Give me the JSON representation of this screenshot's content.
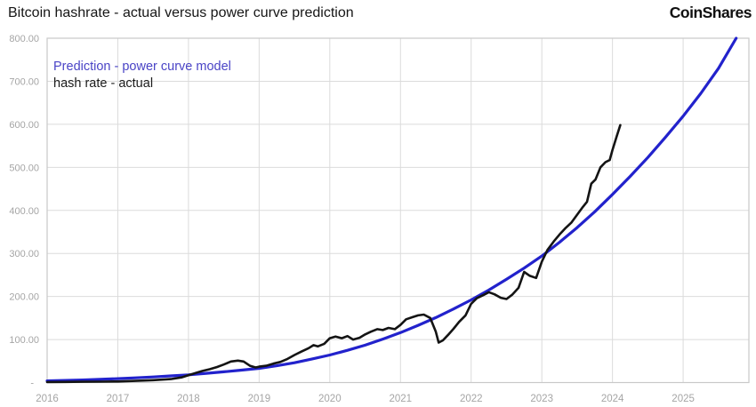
{
  "header": {
    "title": "Bitcoin hashrate - actual versus power curve prediction",
    "brand": "CoinShares"
  },
  "legend": [
    {
      "label": "Prediction - power curve model",
      "color": "#4a44c6"
    },
    {
      "label": "hash rate - actual",
      "color": "#1c1c1c"
    }
  ],
  "chart_data": {
    "type": "line",
    "title": "Bitcoin hashrate - actual versus power curve prediction",
    "xlabel": "",
    "ylabel": "",
    "xlim": [
      2016,
      2025.93
    ],
    "ylim": [
      0,
      800
    ],
    "grid": true,
    "legend_position": "top-left-inside",
    "x_axis": {
      "tick_years": [
        2016,
        2017,
        2018,
        2019,
        2020,
        2021,
        2022,
        2023,
        2024,
        2025
      ]
    },
    "y_axis": {
      "tick_values": [
        800,
        700,
        600,
        500,
        400,
        300,
        200,
        100,
        0
      ],
      "tick_labels": [
        "800.00",
        "700.00",
        "600.00",
        "500.00",
        "400.00",
        "300.00",
        "200.00",
        "100.00",
        "-"
      ]
    },
    "style": {
      "grid_color": "#dbdbdb",
      "border_color": "#c9c9c9",
      "tick_color": "#a5a5a5",
      "background": "#ffffff"
    },
    "series": [
      {
        "name": "Prediction - power curve model",
        "color": "#2222cc",
        "width": 3.2,
        "points": [
          [
            2016.0,
            4
          ],
          [
            2016.25,
            5
          ],
          [
            2016.5,
            6
          ],
          [
            2016.75,
            7.5
          ],
          [
            2017.0,
            9
          ],
          [
            2017.25,
            11
          ],
          [
            2017.5,
            13
          ],
          [
            2017.75,
            15.5
          ],
          [
            2018.0,
            18
          ],
          [
            2018.25,
            21.5
          ],
          [
            2018.5,
            25
          ],
          [
            2018.75,
            29
          ],
          [
            2019.0,
            33
          ],
          [
            2019.25,
            39
          ],
          [
            2019.5,
            46
          ],
          [
            2019.75,
            55
          ],
          [
            2020.0,
            64
          ],
          [
            2020.25,
            75
          ],
          [
            2020.5,
            87
          ],
          [
            2020.75,
            101
          ],
          [
            2021.0,
            116
          ],
          [
            2021.25,
            133
          ],
          [
            2021.5,
            151
          ],
          [
            2021.75,
            171
          ],
          [
            2022.0,
            192
          ],
          [
            2022.25,
            215
          ],
          [
            2022.5,
            240
          ],
          [
            2022.75,
            266
          ],
          [
            2023.0,
            294
          ],
          [
            2023.25,
            326
          ],
          [
            2023.5,
            360
          ],
          [
            2023.75,
            397
          ],
          [
            2024.0,
            437
          ],
          [
            2024.25,
            479
          ],
          [
            2024.5,
            523
          ],
          [
            2024.75,
            570
          ],
          [
            2025.0,
            619
          ],
          [
            2025.25,
            672
          ],
          [
            2025.5,
            730
          ],
          [
            2025.75,
            800
          ]
        ]
      },
      {
        "name": "hash rate - actual",
        "color": "#141414",
        "width": 2.6,
        "points": [
          [
            2016.0,
            1.2
          ],
          [
            2016.25,
            1.5
          ],
          [
            2016.5,
            1.8
          ],
          [
            2016.75,
            2.0
          ],
          [
            2017.0,
            2.5
          ],
          [
            2017.25,
            4
          ],
          [
            2017.5,
            5.5
          ],
          [
            2017.75,
            8
          ],
          [
            2017.9,
            12
          ],
          [
            2018.0,
            17
          ],
          [
            2018.1,
            22
          ],
          [
            2018.2,
            27
          ],
          [
            2018.3,
            31
          ],
          [
            2018.4,
            36
          ],
          [
            2018.5,
            42
          ],
          [
            2018.6,
            49
          ],
          [
            2018.7,
            51
          ],
          [
            2018.78,
            49
          ],
          [
            2018.87,
            39
          ],
          [
            2018.95,
            35
          ],
          [
            2019.0,
            37
          ],
          [
            2019.1,
            39
          ],
          [
            2019.2,
            44
          ],
          [
            2019.3,
            48
          ],
          [
            2019.4,
            55
          ],
          [
            2019.5,
            64
          ],
          [
            2019.6,
            72
          ],
          [
            2019.7,
            80
          ],
          [
            2019.77,
            87
          ],
          [
            2019.83,
            84
          ],
          [
            2019.92,
            90
          ],
          [
            2020.0,
            103
          ],
          [
            2020.08,
            107
          ],
          [
            2020.17,
            103
          ],
          [
            2020.25,
            108
          ],
          [
            2020.33,
            100
          ],
          [
            2020.42,
            104
          ],
          [
            2020.5,
            112
          ],
          [
            2020.58,
            118
          ],
          [
            2020.67,
            124
          ],
          [
            2020.75,
            122
          ],
          [
            2020.83,
            127
          ],
          [
            2020.92,
            124
          ],
          [
            2021.0,
            134
          ],
          [
            2021.08,
            147
          ],
          [
            2021.17,
            152
          ],
          [
            2021.25,
            156
          ],
          [
            2021.33,
            158
          ],
          [
            2021.42,
            150
          ],
          [
            2021.5,
            118
          ],
          [
            2021.54,
            93
          ],
          [
            2021.6,
            98
          ],
          [
            2021.67,
            110
          ],
          [
            2021.75,
            125
          ],
          [
            2021.83,
            141
          ],
          [
            2021.92,
            156
          ],
          [
            2022.0,
            183
          ],
          [
            2022.08,
            196
          ],
          [
            2022.17,
            203
          ],
          [
            2022.25,
            210
          ],
          [
            2022.33,
            205
          ],
          [
            2022.42,
            197
          ],
          [
            2022.5,
            194
          ],
          [
            2022.58,
            204
          ],
          [
            2022.67,
            220
          ],
          [
            2022.75,
            257
          ],
          [
            2022.83,
            248
          ],
          [
            2022.92,
            243
          ],
          [
            2023.0,
            281
          ],
          [
            2023.08,
            308
          ],
          [
            2023.17,
            328
          ],
          [
            2023.25,
            344
          ],
          [
            2023.33,
            358
          ],
          [
            2023.42,
            372
          ],
          [
            2023.5,
            390
          ],
          [
            2023.58,
            408
          ],
          [
            2023.64,
            420
          ],
          [
            2023.7,
            462
          ],
          [
            2023.76,
            472
          ],
          [
            2023.83,
            500
          ],
          [
            2023.9,
            512
          ],
          [
            2023.96,
            517
          ],
          [
            2024.0,
            540
          ],
          [
            2024.06,
            572
          ],
          [
            2024.11,
            598
          ]
        ]
      }
    ]
  },
  "plot_geometry_note": "y axis gridlines every 100 units; x gridlines yearly"
}
